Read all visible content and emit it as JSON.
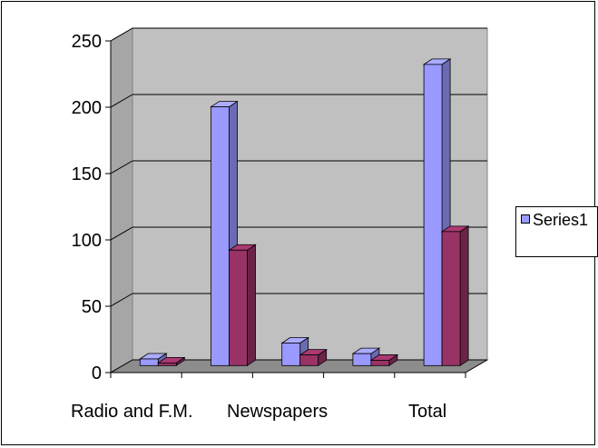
{
  "chart_data": {
    "type": "bar",
    "categories": [
      "Radio and F.M.",
      "Newspapers",
      "",
      "",
      "Total"
    ],
    "series": [
      {
        "name": "Series1",
        "values": [
          5,
          195,
          17,
          9,
          227
        ],
        "color": "#9999ff"
      },
      {
        "values": [
          2,
          87,
          8,
          4,
          101
        ],
        "color": "#993366"
      }
    ],
    "ylim": [
      0,
      250
    ],
    "yticks": [
      0,
      50,
      100,
      150,
      200,
      250
    ],
    "xtick_labels": [
      "Radio and F.M.",
      "Newspapers",
      "Total"
    ],
    "grid": true,
    "legend": "right",
    "wall_color": "#c0c0c0"
  }
}
